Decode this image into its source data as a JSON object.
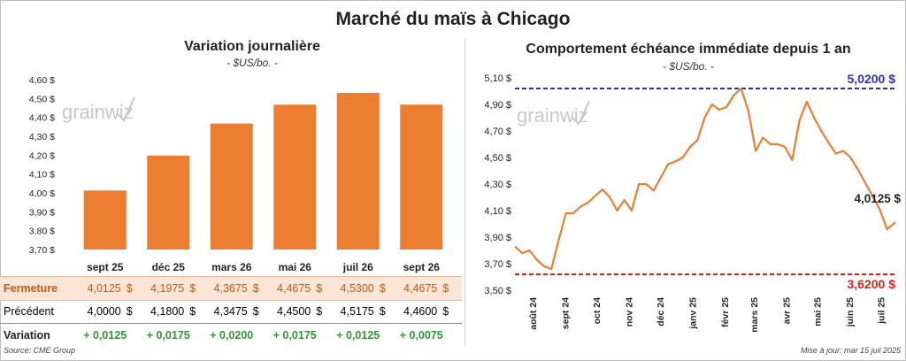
{
  "main_title": "Marché du maïs à Chicago",
  "left_title": "Variation journalière",
  "left_unit": "- $US/bo. -",
  "right_title": "Comportement  échéance immédiate depuis 1 an",
  "right_unit": "- $US/bo. -",
  "watermark": "grainwiz",
  "colors": {
    "bar": "#ed7d31",
    "line": "#ed7d31",
    "max_line": "#2e2eb8",
    "min_line": "#e0201b",
    "positive": "#2e9b2e",
    "fermeture": "#c55a11"
  },
  "table": {
    "labels": {
      "fermeture": "Fermeture",
      "precedent": "Précédent",
      "variation": "Variation"
    },
    "currency": "$",
    "fermeture": [
      "4,0125",
      "4,1975",
      "4,3675",
      "4,4675",
      "4,5300",
      "4,4675"
    ],
    "precedent": [
      "4,0000",
      "4,1800",
      "4,3475",
      "4,4500",
      "4,5175",
      "4,4600"
    ],
    "variation": [
      "+ 0,0125",
      "+ 0,0175",
      "+ 0,0200",
      "+ 0,0175",
      "+ 0,0125",
      "+ 0,0075"
    ]
  },
  "footer": {
    "source": "Source: CME Group",
    "update": "Mise à jour: mar 15 juil 2025"
  },
  "chart_data": [
    {
      "type": "bar",
      "title": "Variation journalière",
      "ylabel": "- $US/bo. -",
      "categories": [
        "sept 25",
        "déc 25",
        "mars 26",
        "mai 26",
        "juil 26",
        "sept 26"
      ],
      "values": [
        4.0125,
        4.1975,
        4.3675,
        4.4675,
        4.53,
        4.4675
      ],
      "ylim": [
        3.7,
        4.6
      ],
      "yticks": [
        3.7,
        3.8,
        3.9,
        4.0,
        4.1,
        4.2,
        4.3,
        4.4,
        4.5,
        4.6
      ],
      "ytick_labels": [
        "3,70 $",
        "3,80 $",
        "3,90 $",
        "4,00 $",
        "4,10 $",
        "4,20 $",
        "4,30 $",
        "4,40 $",
        "4,50 $",
        "4,60 $"
      ],
      "grid": false
    },
    {
      "type": "line",
      "title": "Comportement  échéance immédiate depuis 1 an",
      "ylabel": "- $US/bo. -",
      "ylim": [
        3.5,
        5.1
      ],
      "yticks": [
        3.5,
        3.7,
        3.9,
        4.1,
        4.3,
        4.5,
        4.7,
        4.9,
        5.1
      ],
      "ytick_labels": [
        "3,50 $",
        "3,70 $",
        "3,90 $",
        "4,10 $",
        "4,30 $",
        "4,50 $",
        "4,70 $",
        "4,90 $",
        "5,10 $"
      ],
      "x_range": [
        "2024-07-15",
        "2025-07-15"
      ],
      "x_ticks": [
        {
          "date": "2024-08-01",
          "label": "août 24"
        },
        {
          "date": "2024-09-01",
          "label": "sept 24"
        },
        {
          "date": "2024-10-01",
          "label": "oct 24"
        },
        {
          "date": "2024-11-01",
          "label": "nov 24"
        },
        {
          "date": "2024-12-01",
          "label": "déc 24"
        },
        {
          "date": "2025-01-01",
          "label": "janv 25"
        },
        {
          "date": "2025-02-01",
          "label": "févr 25"
        },
        {
          "date": "2025-03-01",
          "label": "mars 25"
        },
        {
          "date": "2025-04-01",
          "label": "avr 25"
        },
        {
          "date": "2025-05-01",
          "label": "mai 25"
        },
        {
          "date": "2025-06-01",
          "label": "juin 25"
        },
        {
          "date": "2025-07-01",
          "label": "juil 25"
        }
      ],
      "series": [
        {
          "x": [
            "2024-07-15",
            "2024-07-22",
            "2024-07-29",
            "2024-08-05",
            "2024-08-12",
            "2024-08-19",
            "2024-08-26",
            "2024-09-02",
            "2024-09-09",
            "2024-09-16",
            "2024-09-23",
            "2024-09-30",
            "2024-10-07",
            "2024-10-14",
            "2024-10-21",
            "2024-10-28",
            "2024-11-04",
            "2024-11-11",
            "2024-11-18",
            "2024-11-25",
            "2024-12-02",
            "2024-12-09",
            "2024-12-16",
            "2024-12-23",
            "2024-12-30",
            "2025-01-06",
            "2025-01-13",
            "2025-01-20",
            "2025-01-27",
            "2025-02-03",
            "2025-02-10",
            "2025-02-17",
            "2025-02-24",
            "2025-03-03",
            "2025-03-10",
            "2025-03-17",
            "2025-03-24",
            "2025-03-31",
            "2025-04-07",
            "2025-04-14",
            "2025-04-21",
            "2025-04-28",
            "2025-05-05",
            "2025-05-12",
            "2025-05-19",
            "2025-05-26",
            "2025-06-02",
            "2025-06-09",
            "2025-06-16",
            "2025-06-23",
            "2025-06-30",
            "2025-07-07",
            "2025-07-15"
          ],
          "y": [
            3.83,
            3.78,
            3.8,
            3.73,
            3.68,
            3.66,
            3.88,
            4.08,
            4.08,
            4.13,
            4.16,
            4.21,
            4.26,
            4.2,
            4.1,
            4.18,
            4.1,
            4.3,
            4.3,
            4.25,
            4.35,
            4.45,
            4.47,
            4.5,
            4.58,
            4.63,
            4.8,
            4.9,
            4.86,
            4.88,
            4.97,
            5.02,
            4.85,
            4.55,
            4.65,
            4.6,
            4.6,
            4.58,
            4.48,
            4.78,
            4.92,
            4.8,
            4.7,
            4.61,
            4.53,
            4.55,
            4.5,
            4.41,
            4.31,
            4.21,
            4.11,
            3.96,
            4.0125
          ]
        }
      ],
      "reference_lines": [
        {
          "value": 5.02,
          "label": "5,0200 $"
        },
        {
          "value": 3.62,
          "label": "3,6200 $"
        }
      ],
      "last_label": "4,0125 $",
      "grid": false
    }
  ]
}
